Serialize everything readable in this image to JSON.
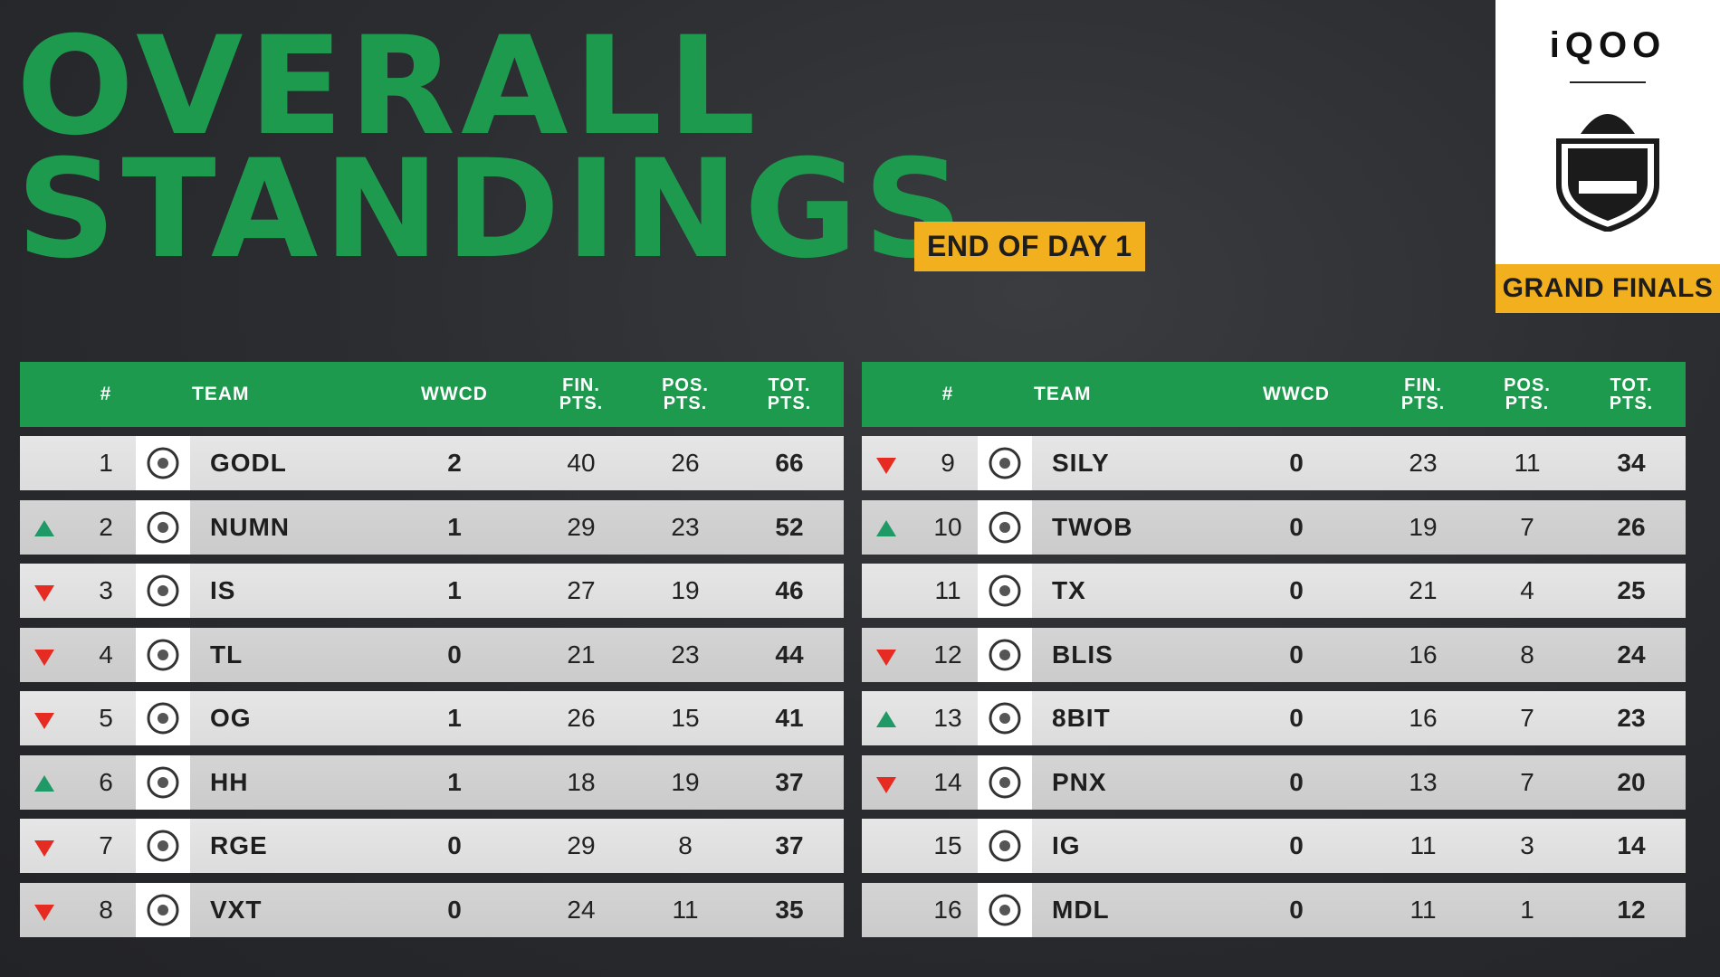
{
  "title": {
    "line1": "OVERALL",
    "line2": "STANDINGS"
  },
  "badge": "END OF DAY 1",
  "brand": {
    "name": "iQOO",
    "event": "GRAND FINALS",
    "logo_icon": "bgmi-pro-series-2024-logo"
  },
  "columns": {
    "rank": "#",
    "team": "TEAM",
    "wwcd": "WWCD",
    "fin_top": "FIN.",
    "fin_bottom": "PTS.",
    "pos_top": "POS.",
    "pos_bottom": "PTS.",
    "tot_top": "TOT.",
    "tot_bottom": "PTS."
  },
  "colors": {
    "green": "#1e9a4e",
    "gold": "#f2b01e",
    "up": "#1f9a66",
    "down": "#e52b22"
  },
  "left_rows": [
    {
      "rank": "1",
      "trend": "none",
      "team": "GODL",
      "logo": "godl-logo-icon",
      "wwcd": "2",
      "fin": "40",
      "pos": "26",
      "tot": "66"
    },
    {
      "rank": "2",
      "trend": "up",
      "team": "NUMN",
      "logo": "numn-logo-icon",
      "wwcd": "1",
      "fin": "29",
      "pos": "23",
      "tot": "52"
    },
    {
      "rank": "3",
      "trend": "down",
      "team": "IS",
      "logo": "is-logo-icon",
      "wwcd": "1",
      "fin": "27",
      "pos": "19",
      "tot": "46"
    },
    {
      "rank": "4",
      "trend": "down",
      "team": "TL",
      "logo": "tl-logo-icon",
      "wwcd": "0",
      "fin": "21",
      "pos": "23",
      "tot": "44"
    },
    {
      "rank": "5",
      "trend": "down",
      "team": "OG",
      "logo": "og-logo-icon",
      "wwcd": "1",
      "fin": "26",
      "pos": "15",
      "tot": "41"
    },
    {
      "rank": "6",
      "trend": "up",
      "team": "HH",
      "logo": "hh-logo-icon",
      "wwcd": "1",
      "fin": "18",
      "pos": "19",
      "tot": "37"
    },
    {
      "rank": "7",
      "trend": "down",
      "team": "RGE",
      "logo": "rge-logo-icon",
      "wwcd": "0",
      "fin": "29",
      "pos": "8",
      "tot": "37"
    },
    {
      "rank": "8",
      "trend": "down",
      "team": "VXT",
      "logo": "vxt-logo-icon",
      "wwcd": "0",
      "fin": "24",
      "pos": "11",
      "tot": "35"
    }
  ],
  "right_rows": [
    {
      "rank": "9",
      "trend": "down",
      "team": "SILY",
      "logo": "sily-logo-icon",
      "wwcd": "0",
      "fin": "23",
      "pos": "11",
      "tot": "34"
    },
    {
      "rank": "10",
      "trend": "up",
      "team": "TWOB",
      "logo": "twob-logo-icon",
      "wwcd": "0",
      "fin": "19",
      "pos": "7",
      "tot": "26"
    },
    {
      "rank": "11",
      "trend": "none",
      "team": "TX",
      "logo": "tx-logo-icon",
      "wwcd": "0",
      "fin": "21",
      "pos": "4",
      "tot": "25"
    },
    {
      "rank": "12",
      "trend": "down",
      "team": "BLIS",
      "logo": "blis-logo-icon",
      "wwcd": "0",
      "fin": "16",
      "pos": "8",
      "tot": "24"
    },
    {
      "rank": "13",
      "trend": "up",
      "team": "8BIT",
      "logo": "8bit-logo-icon",
      "wwcd": "0",
      "fin": "16",
      "pos": "7",
      "tot": "23"
    },
    {
      "rank": "14",
      "trend": "down",
      "team": "PNX",
      "logo": "pnx-logo-icon",
      "wwcd": "0",
      "fin": "13",
      "pos": "7",
      "tot": "20"
    },
    {
      "rank": "15",
      "trend": "none",
      "team": "IG",
      "logo": "ig-logo-icon",
      "wwcd": "0",
      "fin": "11",
      "pos": "3",
      "tot": "14"
    },
    {
      "rank": "16",
      "trend": "none",
      "team": "MDL",
      "logo": "mdl-logo-icon",
      "wwcd": "0",
      "fin": "11",
      "pos": "1",
      "tot": "12"
    }
  ]
}
